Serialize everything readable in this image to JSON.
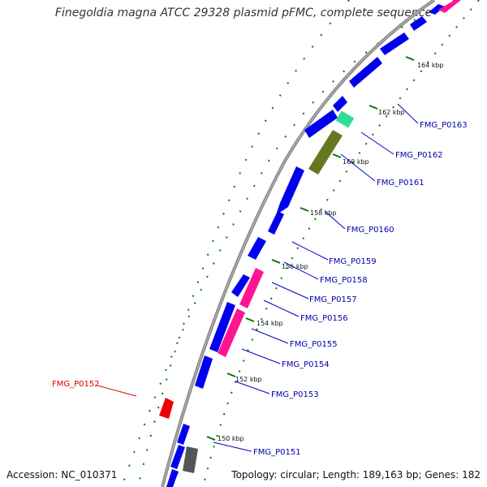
{
  "title": "Finegoldia magna ATCC 29328 plasmid pFMC, complete sequence",
  "accession_label": "Accession: NC_010371",
  "summary_label": "Topology: circular; Length: 189,163 bp; Genes: 182",
  "colors": {
    "backbone": "#888888",
    "cds_plus": "#0000ee",
    "cds_minus": "#0000ee",
    "tick": "#007700",
    "gene_label": "#0000aa",
    "highlight_label": "#dd0000"
  },
  "kbp_marks": [
    "150 kbp",
    "152 kbp",
    "154 kbp",
    "156 kbp",
    "158 kbp",
    "160 kbp",
    "162 kbp",
    "164 kbp"
  ],
  "gene_labels": [
    {
      "name": "FMG_P0163",
      "color": "blue"
    },
    {
      "name": "FMG_P0162",
      "color": "blue"
    },
    {
      "name": "FMG_P0161",
      "color": "blue"
    },
    {
      "name": "FMG_P0160",
      "color": "blue"
    },
    {
      "name": "FMG_P0159",
      "color": "blue"
    },
    {
      "name": "FMG_P0158",
      "color": "blue"
    },
    {
      "name": "FMG_P0157",
      "color": "blue"
    },
    {
      "name": "FMG_P0156",
      "color": "blue"
    },
    {
      "name": "FMG_P0155",
      "color": "blue"
    },
    {
      "name": "FMG_P0154",
      "color": "blue"
    },
    {
      "name": "FMG_P0153",
      "color": "blue"
    },
    {
      "name": "FMG_P0152",
      "color": "red"
    },
    {
      "name": "FMG_P0151",
      "color": "blue"
    }
  ]
}
